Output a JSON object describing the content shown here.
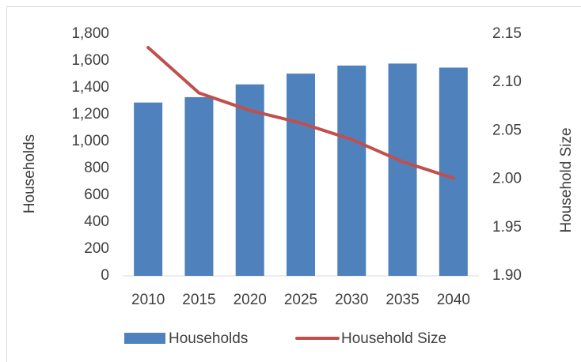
{
  "chart_data": {
    "type": "bar-line",
    "categories": [
      "2010",
      "2015",
      "2020",
      "2025",
      "2030",
      "2035",
      "2040"
    ],
    "series": [
      {
        "name": "Households",
        "type": "bar",
        "color": "#4f81bd",
        "axis": "y",
        "values": [
          1290,
          1330,
          1425,
          1505,
          1565,
          1580,
          1550
        ]
      },
      {
        "name": "Household Size",
        "type": "line",
        "color": "#c0504d",
        "axis": "y2",
        "values": [
          2.136,
          2.089,
          2.071,
          2.058,
          2.041,
          2.018,
          2.001
        ]
      }
    ],
    "ylabel": "Households",
    "y2label": "Household Size",
    "ylim": [
      0,
      1800
    ],
    "yticks": [
      0,
      200,
      400,
      600,
      800,
      {
        "value": 1000,
        "label": "1,000"
      },
      {
        "value": 1200,
        "label": "1,200"
      },
      {
        "value": 1400,
        "label": "1,400"
      },
      {
        "value": 1600,
        "label": "1,600"
      },
      {
        "value": 1800,
        "label": "1,800"
      }
    ],
    "y2lim": [
      1.9,
      2.15
    ],
    "y2ticks": [
      {
        "value": 1.9,
        "label": "1.90"
      },
      1.95,
      {
        "value": 2.0,
        "label": "2.00"
      },
      2.05,
      {
        "value": 2.1,
        "label": "2.10"
      },
      2.15
    ],
    "legend": "bottom"
  }
}
